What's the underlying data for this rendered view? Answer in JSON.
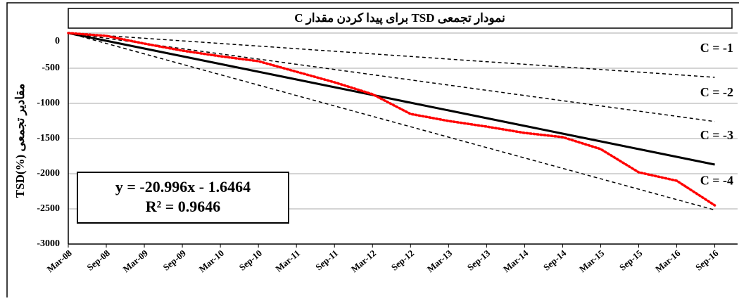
{
  "chart_data": {
    "type": "line",
    "title": "نمودار تجمعی TSD برای پیدا کردن مقدار C",
    "y_label": "TSD(%)  مقادیر تجمعی",
    "categories": [
      "Mar-08",
      "Sep-08",
      "Mar-09",
      "Sep-09",
      "Mar-10",
      "Sep-10",
      "Mar-11",
      "Sep-11",
      "Mar-12",
      "Sep-12",
      "Mar-13",
      "Sep-13",
      "Mar-14",
      "Sep-14",
      "Mar-15",
      "Sep-15",
      "Mar-16",
      "Sep-16"
    ],
    "xlim": [
      0,
      17.6
    ],
    "ylim": [
      -3000,
      0
    ],
    "yticks": [
      0,
      -500,
      -1000,
      -1500,
      -2000,
      -2500,
      -3000
    ],
    "grid": true,
    "series": [
      {
        "name": "C = -1",
        "color": "#000000",
        "style": "dashed",
        "values": [
          0,
          -37,
          -74,
          -111,
          -148,
          -185,
          -222,
          -259,
          -296,
          -333,
          -370,
          -407,
          -444,
          -481,
          -518,
          -555,
          -592,
          -629
        ]
      },
      {
        "name": "C = -2",
        "color": "#000000",
        "style": "dashed",
        "values": [
          0,
          -74,
          -148,
          -222,
          -296,
          -370,
          -444,
          -518,
          -592,
          -666,
          -740,
          -814,
          -888,
          -962,
          -1036,
          -1110,
          -1184,
          -1258
        ]
      },
      {
        "name": "C = -3",
        "color": "#000000",
        "style": "solid",
        "values": [
          0,
          -110,
          -220,
          -330,
          -440,
          -550,
          -660,
          -770,
          -880,
          -990,
          -1100,
          -1210,
          -1320,
          -1430,
          -1540,
          -1650,
          -1760,
          -1870
        ]
      },
      {
        "name": "C = -4",
        "color": "#000000",
        "style": "dashed",
        "values": [
          0,
          -148,
          -296,
          -444,
          -592,
          -740,
          -888,
          -1036,
          -1184,
          -1332,
          -1480,
          -1628,
          -1776,
          -1924,
          -2072,
          -2220,
          -2368,
          -2516
        ]
      },
      {
        "color": "#ff0000",
        "style": "dotted",
        "values": [
          0,
          -40,
          -150,
          -250,
          -330,
          -400,
          -550,
          -700,
          -870,
          -1150,
          -1250,
          -1330,
          -1420,
          -1480,
          -1650,
          -1980,
          -2100,
          -2450
        ]
      }
    ],
    "annotation": [
      "y = -20.996x - 1.6464",
      "R² = 0.9646"
    ]
  }
}
